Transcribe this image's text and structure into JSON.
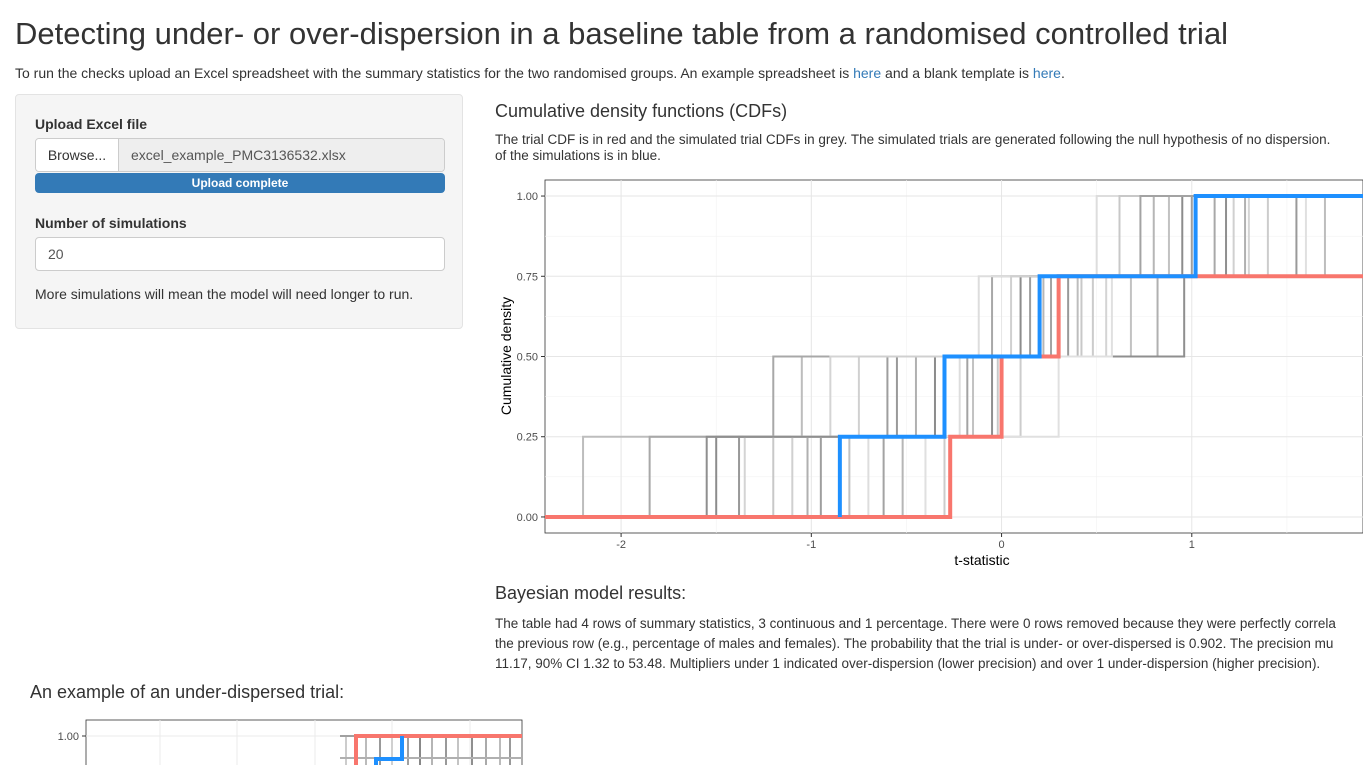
{
  "title": "Detecting under- or over-dispersion in a baseline table from a randomised controlled trial",
  "intro": {
    "text": "To run the checks upload an Excel spreadsheet with the summary statistics for the two randomised groups. An example spreadsheet is ",
    "link1": "here",
    "middle": " and a blank template is ",
    "link2": "here",
    "end": "."
  },
  "sidebar": {
    "upload_label": "Upload Excel file",
    "browse_label": "Browse...",
    "file_name": "excel_example_PMC3136532.xlsx",
    "progress_text": "Upload complete",
    "progress_fraction": 1.0,
    "sims_label": "Number of simulations",
    "sims_value": "20",
    "help_text": "More simulations will mean the model will need longer to run."
  },
  "cdf_section": {
    "heading": "Cumulative density functions (CDFs)",
    "desc_line1": "The trial CDF is in red and the simulated trial CDFs in grey. The simulated trials are generated following the null hypothesis of no dispersion.",
    "desc_line2": "of the simulations is in blue."
  },
  "results": {
    "heading": "Bayesian model results:",
    "line1": "The table had 4 rows of summary statistics, 3 continuous and 1 percentage. There were 0 rows removed because they were perfectly correla",
    "line2": "the previous row (e.g., percentage of males and females). The probability that the trial is under- or over-dispersed is 0.902. The precision mu",
    "line3": "11.17, 90% CI 1.32 to 53.48. Multipliers under 1 indicated over-dispersion (lower precision) and over 1 under-dispersion (higher precision)."
  },
  "example": {
    "heading": "An example of an under-dispersed trial:",
    "ytick_top": "1.00"
  },
  "colors": {
    "trial": "#f8766d",
    "median": "#1e90ff",
    "link": "#337ab7",
    "progress": "#337ab7"
  },
  "chart_data": [
    {
      "type": "line",
      "xlabel": "t-statistic",
      "ylabel": "Cumulative density",
      "x_ticks": [
        -2,
        -1,
        0,
        1
      ],
      "y_ticks": [
        "0.00",
        "0.25",
        "0.50",
        "0.75",
        "1.00"
      ],
      "xlim": [
        -2.4,
        1.9
      ],
      "ylim": [
        0,
        1
      ],
      "series": [
        {
          "role": "trial",
          "color": "#f8766d",
          "steps": [
            -0.27,
            0.0,
            0.3,
            2.0
          ]
        },
        {
          "role": "median",
          "color": "#1e90ff",
          "steps": [
            -0.85,
            -0.3,
            0.2,
            1.02
          ]
        }
      ],
      "simulations": [
        {
          "shade": "#bdbdbd",
          "steps": [
            -2.2,
            -1.05,
            0.4,
            1.7
          ]
        },
        {
          "shade": "#8c8c8c",
          "steps": [
            -1.5,
            -0.35,
            0.1,
            0.95
          ]
        },
        {
          "shade": "#a8a8a8",
          "steps": [
            -1.85,
            -1.2,
            -0.05,
            1.12
          ]
        },
        {
          "shade": "#d4d4d4",
          "steps": [
            -1.35,
            -0.9,
            0.55,
            1.3
          ]
        },
        {
          "shade": "#999999",
          "steps": [
            -1.38,
            -0.55,
            0.35,
            1.55
          ]
        },
        {
          "shade": "#c2c2c2",
          "steps": [
            -0.8,
            -0.15,
            0.68,
            0.88
          ]
        },
        {
          "shade": "#b0b0b0",
          "steps": [
            -1.02,
            -0.45,
            0.82,
            1.28
          ]
        },
        {
          "shade": "#dddddd",
          "steps": [
            -0.7,
            -0.22,
            -0.12,
            0.5
          ]
        },
        {
          "shade": "#9e9e9e",
          "steps": [
            -0.95,
            -0.6,
            0.15,
            1.0
          ]
        },
        {
          "shade": "#c8c8c8",
          "steps": [
            -1.2,
            -0.02,
            0.42,
            0.62
          ]
        },
        {
          "shade": "#b6b6b6",
          "steps": [
            -0.52,
            0.22,
            0.0,
            0.8
          ]
        },
        {
          "shade": "#d0d0d0",
          "steps": [
            -1.1,
            -0.75,
            0.05,
            1.22
          ]
        },
        {
          "shade": "#a3a3a3",
          "steps": [
            -0.62,
            -0.18,
            0.26,
            0.73
          ]
        },
        {
          "shade": "#cccccc",
          "steps": [
            -0.3,
            0.1,
            0.48,
            1.4
          ]
        },
        {
          "shade": "#8f8f8f",
          "steps": [
            -1.55,
            -0.05,
            0.96,
            1.18
          ]
        },
        {
          "shade": "#e0e0e0",
          "steps": [
            -0.4,
            0.3,
            0.58,
            1.6
          ]
        }
      ]
    },
    {
      "type": "line",
      "title": "An example of an under-dispersed trial:",
      "y_ticks": [
        "1.00"
      ],
      "partial": true,
      "series": [
        {
          "role": "trial",
          "color": "#f8766d"
        },
        {
          "role": "median",
          "color": "#1e90ff"
        }
      ]
    }
  ]
}
